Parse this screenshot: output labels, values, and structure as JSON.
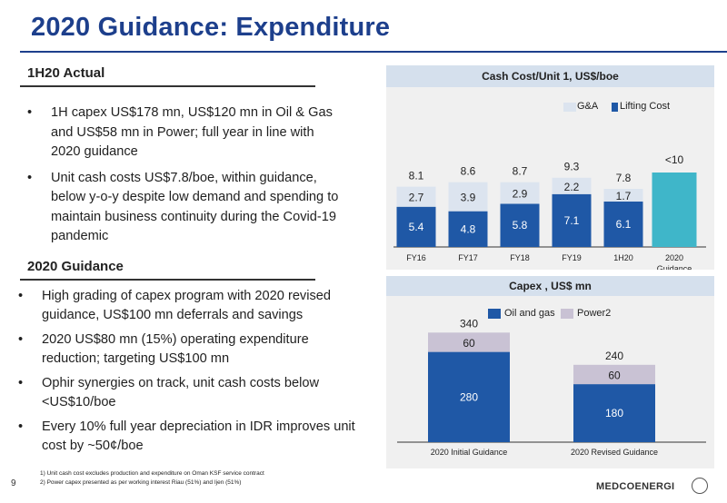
{
  "slide": {
    "title": "2020 Guidance: Expenditure",
    "page_number": "9",
    "brand": "MEDCOENERGI",
    "colors": {
      "title": "#1d3f8c",
      "bar_dark": "#1f58a6",
      "bar_light": "#dce4ef",
      "bar_teal": "#3fb6c9",
      "power": "#c9c2d4"
    }
  },
  "actual": {
    "heading": "1H20 Actual",
    "bullets": [
      "1H capex US$178 mn, US$120 mn in Oil & Gas and US$58 mn in Power; full year in line with 2020 guidance",
      "Unit cash costs US$7.8/boe, within guidance, below y-o-y despite low demand and spending to maintain business continuity during the Covid-19 pandemic"
    ]
  },
  "guidance": {
    "heading": "2020 Guidance",
    "bullets": [
      "High grading of capex program with 2020 revised guidance, US$100 mn deferrals and savings",
      "2020 US$80 mn (15%) operating expenditure reduction; targeting US$100 mn",
      "Ophir synergies on track, unit cash costs below <US$10/boe",
      "Every 10% full year depreciation in IDR improves unit cost by ~50¢/boe"
    ]
  },
  "footnotes": [
    "1) Unit cash cost excludes production and expenditure on Oman KSF service contract",
    "2) Power capex presented as per working interest Riau (51%) and Ijen (51%)"
  ],
  "chart_data": [
    {
      "type": "bar",
      "title": "Cash Cost/Unit 1, US$/boe",
      "categories": [
        "FY16",
        "FY17",
        "FY18",
        "FY19",
        "1H20",
        "2020 Guidance"
      ],
      "series": [
        {
          "name": "Lifting Cost",
          "values": [
            5.4,
            4.8,
            5.8,
            7.1,
            6.1,
            null
          ]
        },
        {
          "name": "G&A",
          "values": [
            2.7,
            3.9,
            2.9,
            2.2,
            1.7,
            null
          ]
        }
      ],
      "totals": [
        "8.1",
        "8.6",
        "8.7",
        "9.3",
        "7.8",
        "<10"
      ],
      "guidance_value": 10,
      "stacked": true,
      "legend_position": "top-right",
      "ylim": [
        0,
        12
      ]
    },
    {
      "type": "bar",
      "title": "Capex , US$ mn",
      "categories": [
        "2020 Initial Guidance",
        "2020 Revised Guidance"
      ],
      "series": [
        {
          "name": "Oil and gas",
          "values": [
            280,
            180
          ]
        },
        {
          "name": "Power2",
          "values": [
            60,
            60
          ]
        }
      ],
      "totals": [
        340,
        240
      ],
      "stacked": true,
      "legend_position": "top",
      "ylim": [
        0,
        400
      ]
    }
  ]
}
